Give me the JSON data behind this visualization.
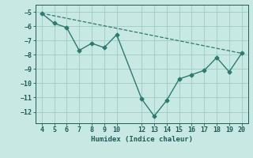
{
  "x": [
    4,
    5,
    6,
    7,
    8,
    9,
    10,
    12,
    13,
    14,
    15,
    16,
    17,
    18,
    19,
    20
  ],
  "y": [
    -5.1,
    -5.8,
    -6.1,
    -7.7,
    -7.2,
    -7.5,
    -6.6,
    -11.1,
    -12.3,
    -11.2,
    -9.7,
    -9.4,
    -9.1,
    -8.2,
    -9.2,
    -7.9
  ],
  "trend_x": [
    4,
    20
  ],
  "trend_y": [
    -5.1,
    -7.9
  ],
  "xlim": [
    3.5,
    20.5
  ],
  "ylim": [
    -12.8,
    -4.5
  ],
  "xticks": [
    4,
    5,
    6,
    7,
    8,
    9,
    10,
    12,
    13,
    14,
    15,
    16,
    17,
    18,
    19,
    20
  ],
  "yticks": [
    -5,
    -6,
    -7,
    -8,
    -9,
    -10,
    -11,
    -12
  ],
  "xlabel": "Humidex (Indice chaleur)",
  "line_color": "#2d7a6e",
  "bg_color": "#c8e8e4",
  "grid_color": "#9eccc5",
  "text_color": "#1e5c55"
}
